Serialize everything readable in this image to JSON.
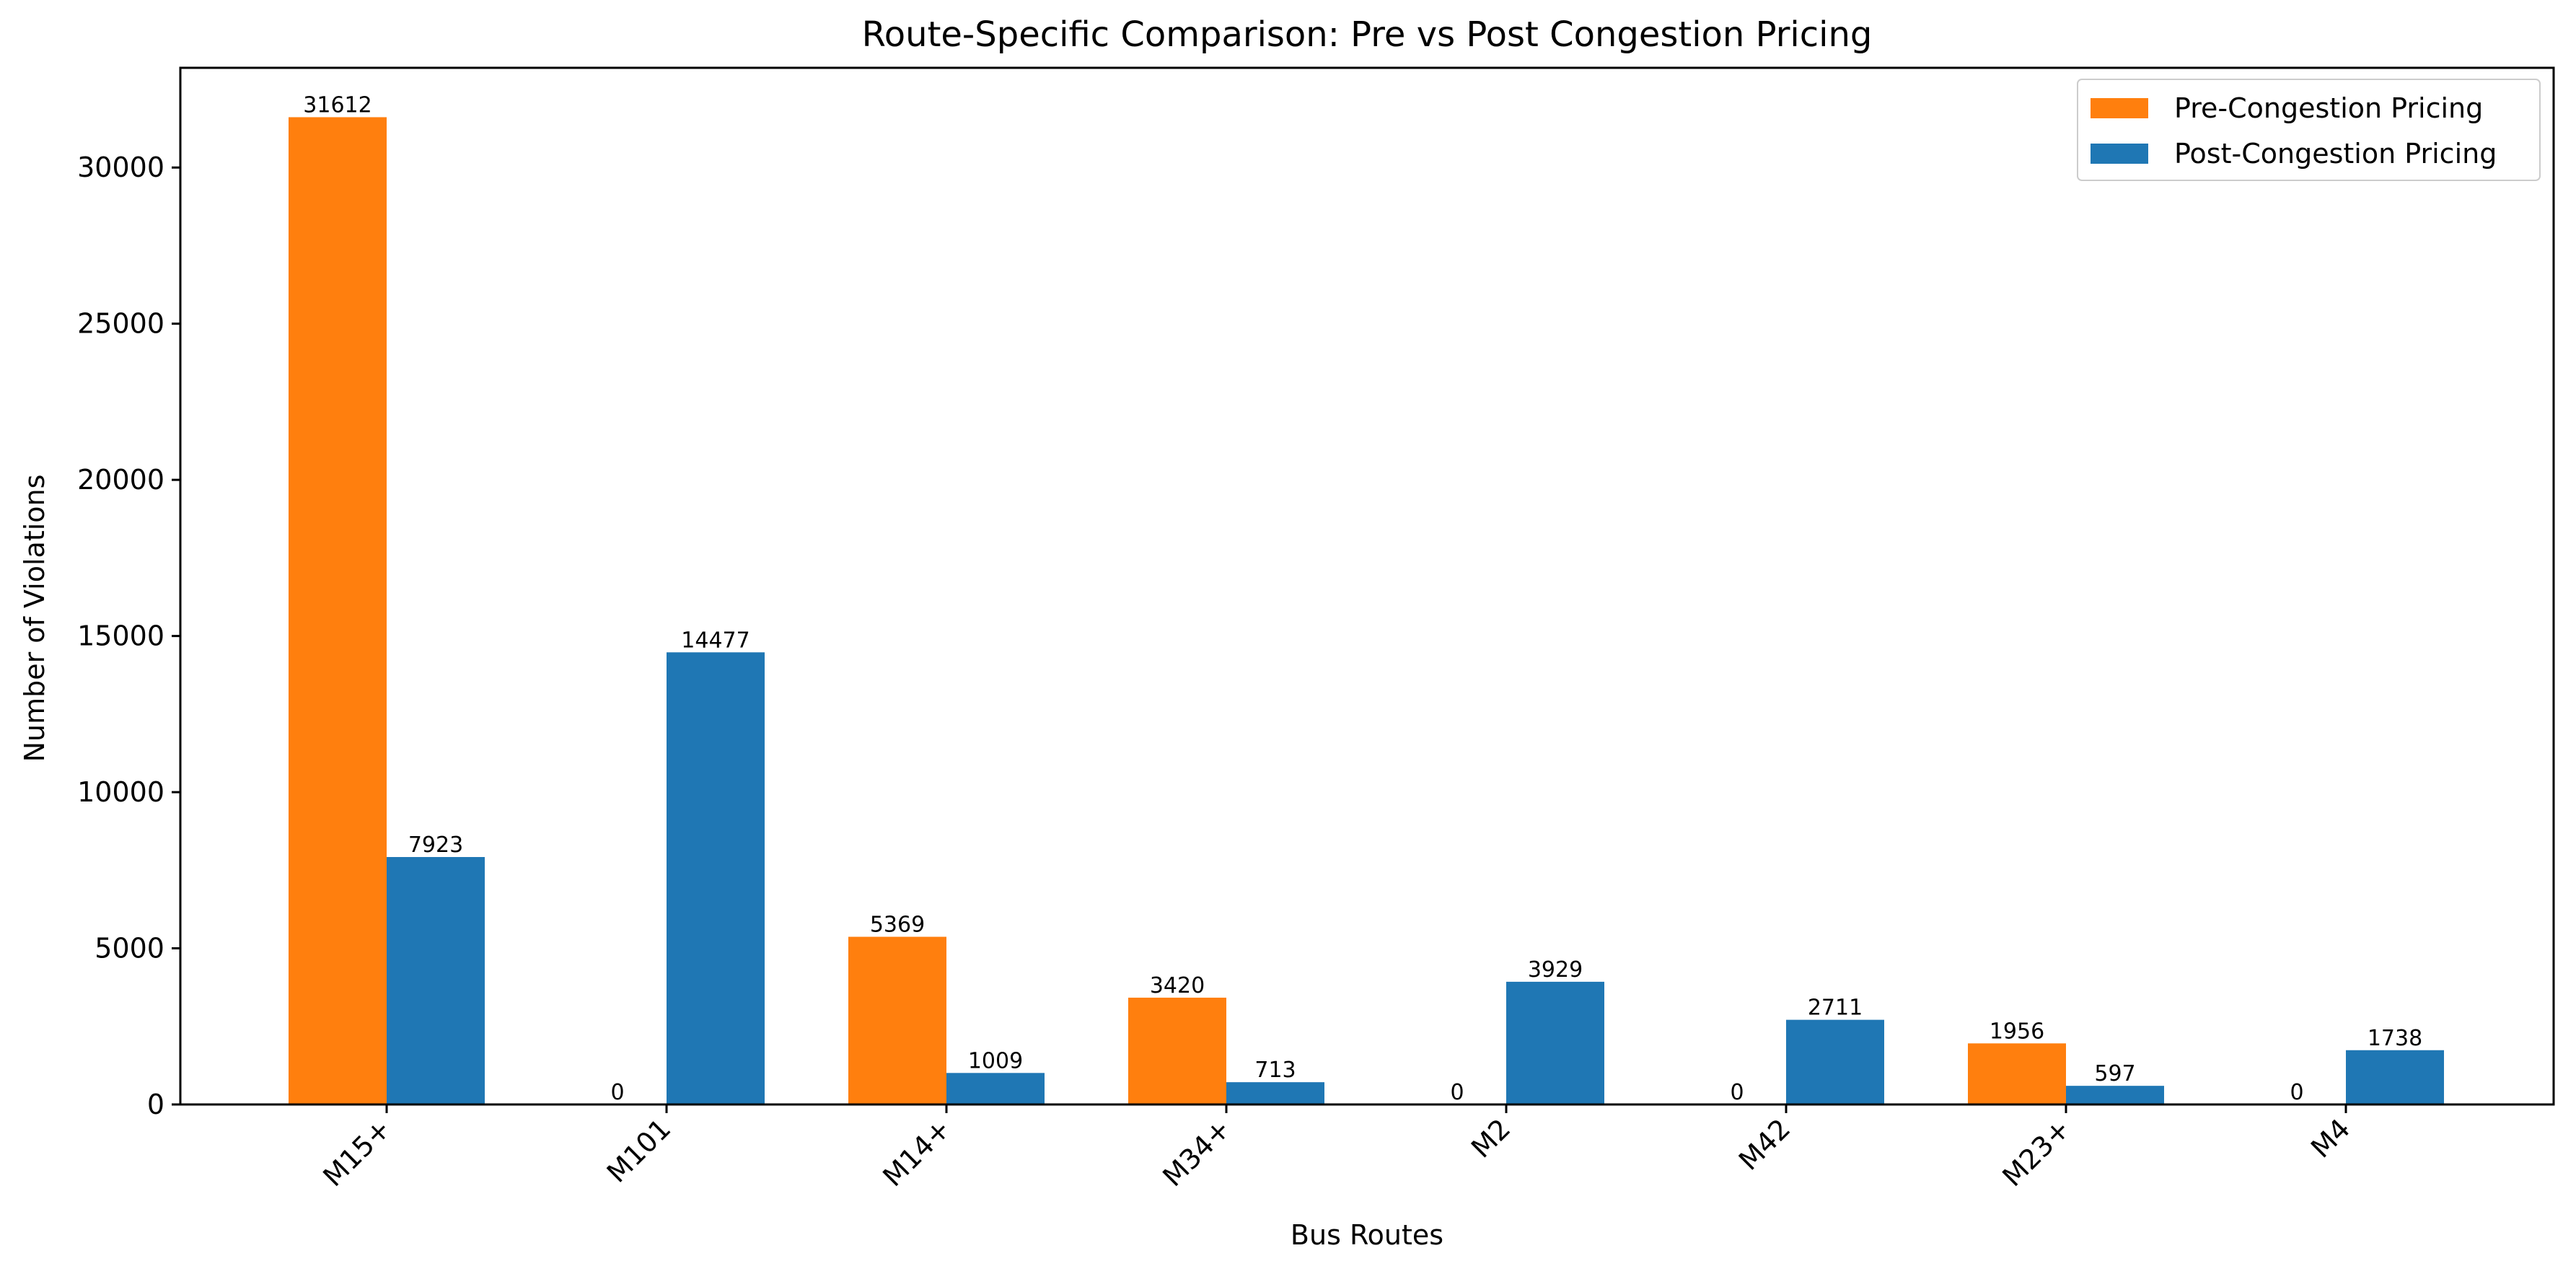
{
  "chart_data": {
    "type": "bar",
    "title": "Route-Specific Comparison: Pre vs Post Congestion Pricing",
    "xlabel": "Bus Routes",
    "ylabel": "Number of Violations",
    "categories": [
      "M15+",
      "M101",
      "M14+",
      "M34+",
      "M2",
      "M42",
      "M23+",
      "M4"
    ],
    "series": [
      {
        "name": "Pre-Congestion Pricing",
        "color": "#ff7f0e",
        "values": [
          31612,
          0,
          5369,
          3420,
          0,
          0,
          1956,
          0
        ]
      },
      {
        "name": "Post-Congestion Pricing",
        "color": "#1f77b4",
        "values": [
          7923,
          14477,
          1009,
          713,
          3929,
          2711,
          597,
          1738
        ]
      }
    ],
    "yticks": [
      0,
      5000,
      10000,
      15000,
      20000,
      25000,
      30000
    ],
    "ylim": [
      0,
      33193
    ],
    "grid": false,
    "legend_position": "top-right",
    "x_tick_rotation": 45
  }
}
